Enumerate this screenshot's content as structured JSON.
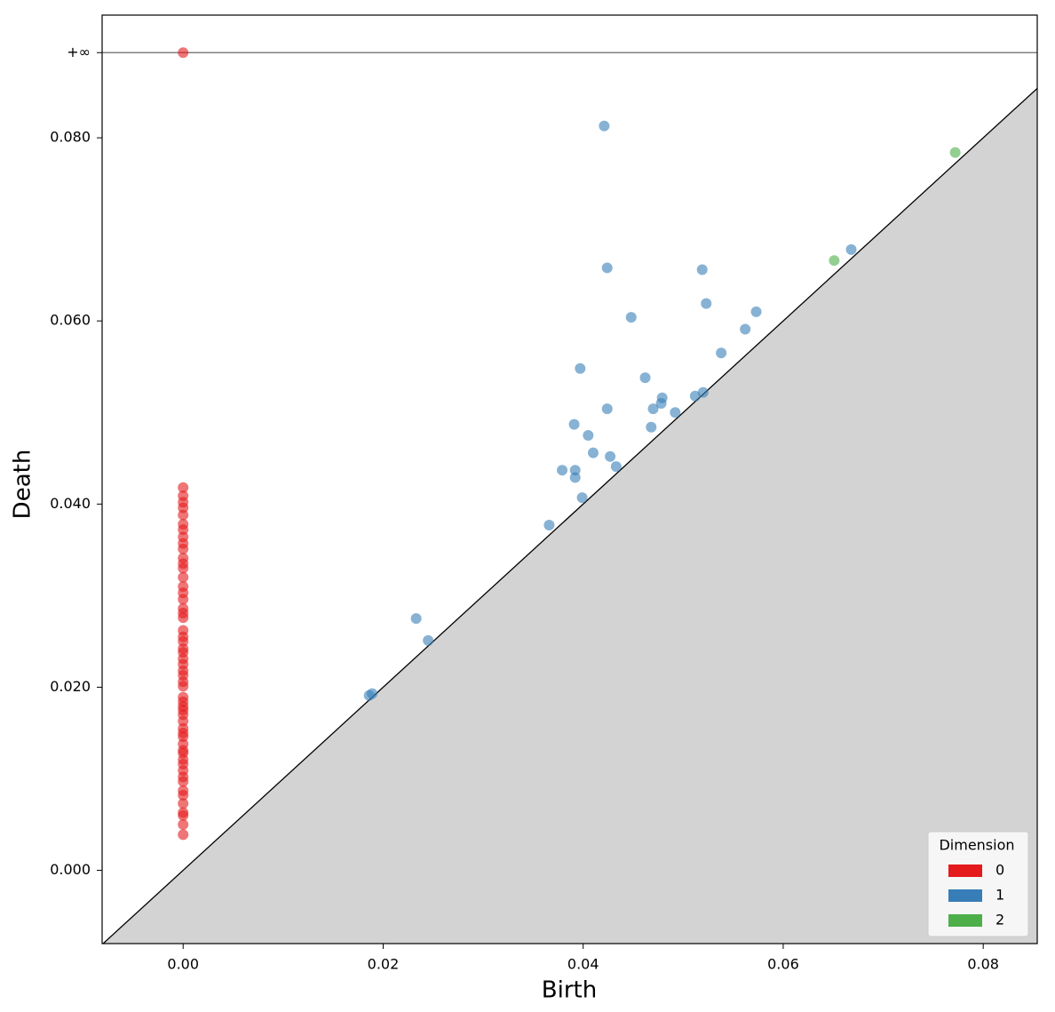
{
  "chart_data": {
    "type": "scatter",
    "xlabel": "Birth",
    "ylabel": "Death",
    "xlim": [
      -0.0081,
      0.0854
    ],
    "ylim": [
      -0.008,
      0.0934
    ],
    "xticks": [
      {
        "value": 0,
        "label": "0.00"
      },
      {
        "value": 0.02,
        "label": "0.02"
      },
      {
        "value": 0.04,
        "label": "0.04"
      },
      {
        "value": 0.06,
        "label": "0.06"
      },
      {
        "value": 0.08,
        "label": "0.08"
      }
    ],
    "yticks": [
      {
        "value": 0,
        "label": "0.000"
      },
      {
        "value": 0.02,
        "label": "0.020"
      },
      {
        "value": 0.04,
        "label": "0.040"
      },
      {
        "value": 0.06,
        "label": "0.060"
      },
      {
        "value": 0.08,
        "label": "0.080"
      },
      {
        "value": 0.0893,
        "label": "+∞"
      }
    ],
    "legend_title": "Dimension",
    "legend_position": "lower right",
    "series": [
      {
        "name": "0",
        "color": "#e41a1c",
        "x": [
          0,
          0,
          0,
          0,
          0,
          0,
          0,
          0,
          0,
          0,
          0,
          0,
          0,
          0,
          0,
          0,
          0,
          0,
          0,
          0,
          0,
          0,
          0,
          0,
          0,
          0,
          0,
          0,
          0,
          0,
          0,
          0,
          0,
          0,
          0,
          0,
          0,
          0,
          0,
          0,
          0,
          0,
          0,
          0,
          0,
          0,
          0,
          0,
          0,
          0,
          0,
          0,
          0,
          0,
          0,
          0
        ],
        "values": [
          0.0039,
          0.005,
          0.006,
          0.0063,
          0.0073,
          0.0082,
          0.0087,
          0.0097,
          0.0102,
          0.0109,
          0.0116,
          0.0121,
          0.0128,
          0.0131,
          0.0138,
          0.0146,
          0.015,
          0.0155,
          0.0163,
          0.017,
          0.0175,
          0.0179,
          0.0184,
          0.0189,
          0.0201,
          0.0206,
          0.0213,
          0.0218,
          0.0225,
          0.0231,
          0.0238,
          0.0242,
          0.025,
          0.0255,
          0.0262,
          0.0276,
          0.0281,
          0.0286,
          0.0296,
          0.0303,
          0.031,
          0.032,
          0.033,
          0.0335,
          0.0341,
          0.0351,
          0.0357,
          0.0364,
          0.0372,
          0.0378,
          0.0388,
          0.0396,
          0.0402,
          0.0409,
          0.0418,
          0.0893
        ]
      },
      {
        "name": "1",
        "color": "#377eb8",
        "x": [
          0.0421,
          0.0424,
          0.0519,
          0.0523,
          0.0573,
          0.0448,
          0.0562,
          0.0538,
          0.0397,
          0.0462,
          0.0479,
          0.0478,
          0.047,
          0.0424,
          0.0512,
          0.052,
          0.0492,
          0.0391,
          0.0468,
          0.0405,
          0.041,
          0.0427,
          0.0379,
          0.0392,
          0.0392,
          0.0433,
          0.0399,
          0.0366,
          0.0233,
          0.0245,
          0.0186,
          0.0189,
          0.0668
        ],
        "values": [
          0.0813,
          0.0658,
          0.0656,
          0.0619,
          0.061,
          0.0604,
          0.0591,
          0.0565,
          0.0548,
          0.0538,
          0.0516,
          0.051,
          0.0504,
          0.0504,
          0.0518,
          0.0522,
          0.05,
          0.0487,
          0.0484,
          0.0475,
          0.0456,
          0.0452,
          0.0437,
          0.0437,
          0.0429,
          0.0441,
          0.0407,
          0.0377,
          0.0275,
          0.0251,
          0.0191,
          0.0193,
          0.0678
        ]
      },
      {
        "name": "2",
        "color": "#4daf4a",
        "x": [
          0.0651,
          0.0772
        ],
        "values": [
          0.0666,
          0.0784
        ]
      }
    ]
  }
}
